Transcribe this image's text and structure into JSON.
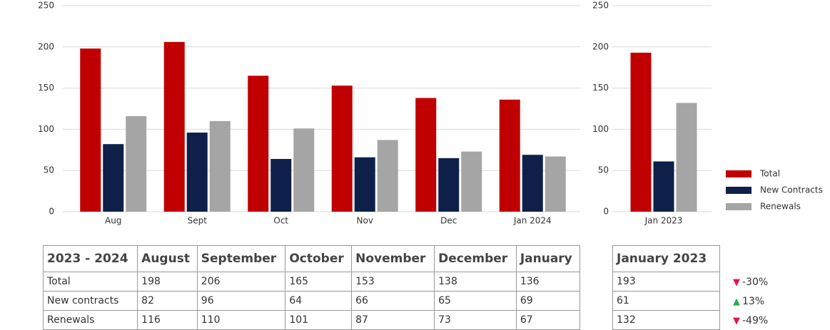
{
  "chart_data": [
    {
      "type": "bar",
      "categories": [
        "Aug",
        "Sept",
        "Oct",
        "Nov",
        "Dec",
        "Jan 2024"
      ],
      "series": [
        {
          "name": "Total",
          "color": "#c00000",
          "values": [
            198,
            206,
            165,
            153,
            138,
            136
          ]
        },
        {
          "name": "New Contracts",
          "color": "#0e1f4a",
          "values": [
            82,
            96,
            64,
            66,
            65,
            69
          ]
        },
        {
          "name": "Renewals",
          "color": "#a5a5a5",
          "values": [
            116,
            110,
            101,
            87,
            73,
            67
          ]
        }
      ],
      "ylim": [
        0,
        250
      ],
      "yticks": [
        0,
        50,
        100,
        150,
        200,
        250
      ],
      "grid": true,
      "legend": "right"
    },
    {
      "type": "bar",
      "categories": [
        "Jan 2023"
      ],
      "series": [
        {
          "color": "#c00000",
          "values": [
            193
          ]
        },
        {
          "color": "#0e1f4a",
          "values": [
            61
          ]
        },
        {
          "color": "#a5a5a5",
          "values": [
            132
          ]
        }
      ],
      "ylim": [
        0,
        250
      ],
      "yticks": [
        0,
        50,
        100,
        150,
        200,
        250
      ],
      "grid": true
    }
  ],
  "tables": [
    {
      "header": [
        "2023 - 2024",
        "August",
        "September",
        "October",
        "November",
        "December",
        "January"
      ],
      "row_labels": [
        "Total",
        "New contracts",
        "Renewals"
      ]
    },
    {
      "header": [
        "January 2023"
      ],
      "changes": [
        "-30%",
        "13%",
        "-49%"
      ]
    }
  ]
}
